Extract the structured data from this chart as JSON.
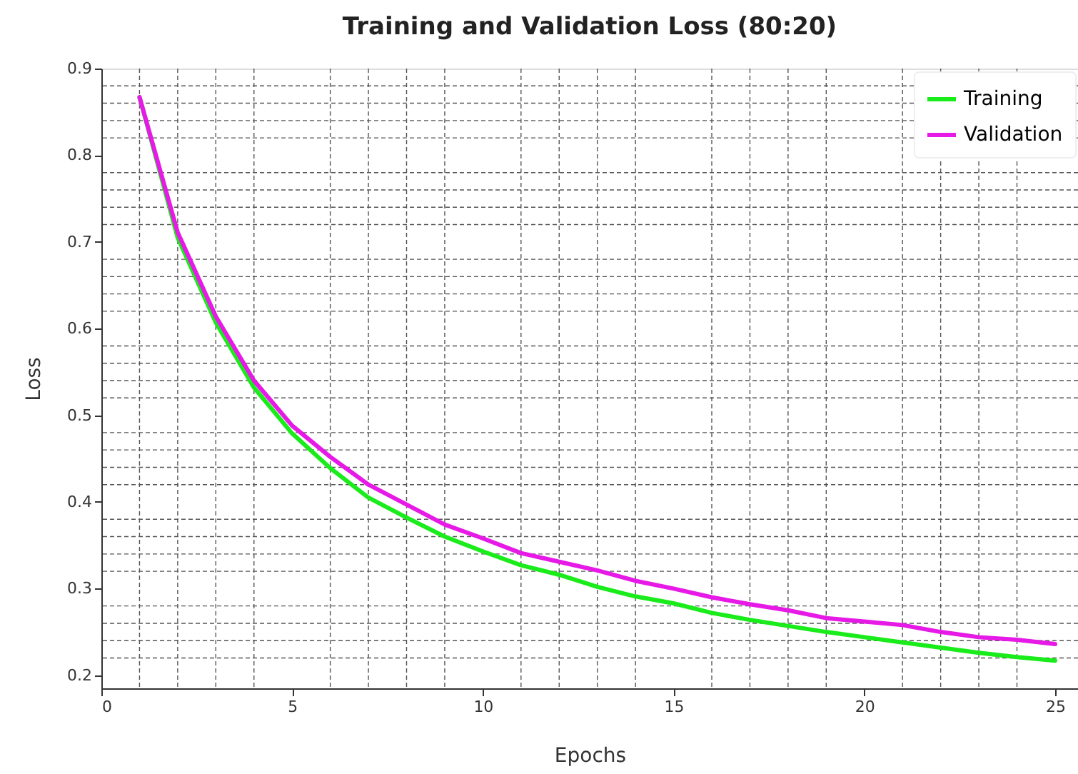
{
  "chart_data": {
    "type": "line",
    "title": "Training and Validation Loss (80:20)",
    "xlabel": "Epochs",
    "ylabel": "Loss",
    "x": [
      1,
      2,
      3,
      4,
      5,
      6,
      7,
      8,
      9,
      10,
      11,
      12,
      13,
      14,
      15,
      16,
      17,
      18,
      19,
      20,
      21,
      22,
      23,
      24,
      25
    ],
    "series": [
      {
        "name": "Training",
        "color": "#1aeb1a",
        "values": [
          0.867,
          0.705,
          0.607,
          0.532,
          0.479,
          0.439,
          0.405,
          0.382,
          0.36,
          0.343,
          0.327,
          0.316,
          0.302,
          0.291,
          0.283,
          0.272,
          0.264,
          0.257,
          0.25,
          0.244,
          0.238,
          0.232,
          0.226,
          0.221,
          0.217
        ]
      },
      {
        "name": "Validation",
        "color": "#e619e6",
        "values": [
          0.867,
          0.711,
          0.614,
          0.54,
          0.488,
          0.452,
          0.42,
          0.397,
          0.374,
          0.358,
          0.341,
          0.331,
          0.321,
          0.309,
          0.3,
          0.29,
          0.282,
          0.275,
          0.266,
          0.262,
          0.258,
          0.25,
          0.244,
          0.241,
          0.236
        ]
      }
    ],
    "xlim": [
      0,
      25.6
    ],
    "xticks": [
      0,
      5,
      10,
      15,
      20,
      25
    ],
    "ylim": [
      0.185,
      0.9
    ],
    "yticks": [
      0.2,
      0.3,
      0.4,
      0.5,
      0.6,
      0.7,
      0.8,
      0.9
    ],
    "grid": true,
    "legend": "top right",
    "marker": "none",
    "line_style": "solid"
  }
}
